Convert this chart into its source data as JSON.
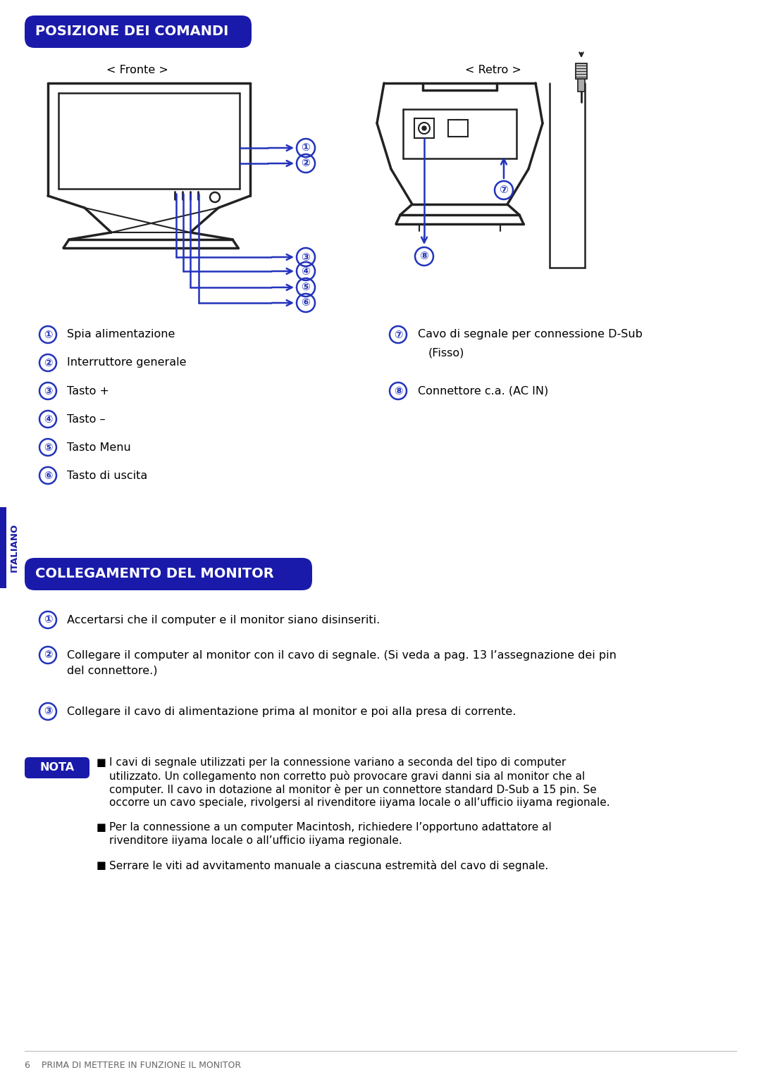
{
  "title1": "POSIZIONE DEI COMANDI",
  "title2": "COLLEGAMENTO DEL MONITOR",
  "fronte_label": "< Fronte >",
  "retro_label": "< Retro >",
  "items_left": [
    [
      "①",
      "Spia alimentazione"
    ],
    [
      "②",
      "Interruttore generale"
    ],
    [
      "③",
      "Tasto +"
    ],
    [
      "④",
      "Tasto –"
    ],
    [
      "⑤",
      "Tasto Menu"
    ],
    [
      "⑥",
      "Tasto di uscita"
    ]
  ],
  "item7_line1": "Cavo di segnale per connessione D-Sub",
  "item7_line2": "(Fisso)",
  "item8": "Connettore c.a. (AC IN)",
  "steps": [
    [
      "①",
      "Accertarsi che il computer e il monitor siano disinseriti."
    ],
    [
      "②",
      "Collegare il computer al monitor con il cavo di segnale. (Si veda a pag. 13 l’assegnazione dei pin",
      "del connettore.)"
    ],
    [
      "③",
      "Collegare il cavo di alimentazione prima al monitor e poi alla presa di corrente."
    ]
  ],
  "nota_label": "NOTA",
  "nota_text1": [
    "I cavi di segnale utilizzati per la connessione variano a seconda del tipo di computer",
    "utilizzato. Un collegamento non corretto può provocare gravi danni sia al monitor che al",
    "computer. Il cavo in dotazione al monitor è per un connettore standard D-Sub a 15 pin. Se",
    "occorre un cavo speciale, rivolgersi al rivenditore iiyama locale o all’ufficio iiyama regionale."
  ],
  "nota_text2": [
    "Per la connessione a un computer Macintosh, richiedere l’opportuno adattatore al",
    "rivenditore iiyama locale o all’ufficio iiyama regionale."
  ],
  "nota_text3": [
    "Serrare le viti ad avvitamento manuale a ciascuna estremità del cavo di segnale."
  ],
  "footer": "6    PRIMA DI METTERE IN FUNZIONE IL MONITOR",
  "italiano_label": "ITALIANO",
  "header_bg": "#1a1aaa",
  "header_text": "#ffffff",
  "arrow_color": "#2233bb",
  "dark_navy": "#1a1aaa",
  "nota_bg": "#1a1aaa",
  "line_color": "#222222",
  "bg_color": "#ffffff"
}
